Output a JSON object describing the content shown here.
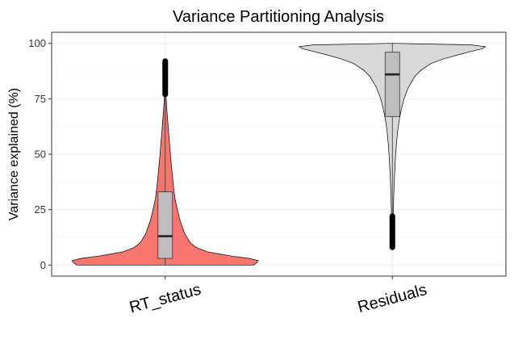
{
  "chart_data": {
    "type": "violin",
    "title": "Variance Partitioning Analysis",
    "xlabel": "",
    "ylabel": "Variance explained (%)",
    "ylim": [
      -5,
      105
    ],
    "yticks": [
      0,
      25,
      50,
      75,
      100
    ],
    "grid": true,
    "categories": [
      "RT_status",
      "Residuals"
    ],
    "series": [
      {
        "category": "RT_status",
        "color": "#f8766d",
        "box": {
          "q1": 3,
          "median": 13,
          "q3": 33,
          "whisker_low": 0,
          "whisker_high": 77
        },
        "outliers_range": [
          77,
          92
        ],
        "density": [
          [
            0,
            0.95
          ],
          [
            1,
            0.98
          ],
          [
            2,
            1.0
          ],
          [
            3,
            0.9
          ],
          [
            4,
            0.72
          ],
          [
            5,
            0.58
          ],
          [
            6,
            0.45
          ],
          [
            8,
            0.33
          ],
          [
            10,
            0.27
          ],
          [
            14,
            0.21
          ],
          [
            20,
            0.16
          ],
          [
            25,
            0.13
          ],
          [
            30,
            0.105
          ],
          [
            35,
            0.09
          ],
          [
            40,
            0.078
          ],
          [
            45,
            0.066
          ],
          [
            50,
            0.056
          ],
          [
            55,
            0.046
          ],
          [
            60,
            0.036
          ],
          [
            65,
            0.027
          ],
          [
            70,
            0.018
          ],
          [
            75,
            0.01
          ],
          [
            78,
            0.005
          ],
          [
            84,
            0.003
          ],
          [
            90,
            0.002
          ],
          [
            92,
            0.0
          ]
        ]
      },
      {
        "category": "Residuals",
        "color": "#d9d9d9",
        "box": {
          "q1": 67,
          "median": 86,
          "q3": 96,
          "whisker_low": 22,
          "whisker_high": 100
        },
        "outliers_range": [
          8,
          22
        ],
        "density": [
          [
            8,
            0.0
          ],
          [
            12,
            0.004
          ],
          [
            16,
            0.006
          ],
          [
            20,
            0.008
          ],
          [
            25,
            0.011
          ],
          [
            30,
            0.014
          ],
          [
            35,
            0.018
          ],
          [
            40,
            0.023
          ],
          [
            45,
            0.029
          ],
          [
            50,
            0.036
          ],
          [
            55,
            0.045
          ],
          [
            60,
            0.056
          ],
          [
            65,
            0.072
          ],
          [
            70,
            0.095
          ],
          [
            75,
            0.125
          ],
          [
            80,
            0.17
          ],
          [
            85,
            0.24
          ],
          [
            88,
            0.31
          ],
          [
            91,
            0.42
          ],
          [
            93,
            0.55
          ],
          [
            95,
            0.72
          ],
          [
            96.5,
            0.86
          ],
          [
            97.5,
            0.96
          ],
          [
            98.5,
            1.0
          ],
          [
            99.3,
            0.85
          ],
          [
            100,
            0.0
          ]
        ]
      }
    ]
  }
}
